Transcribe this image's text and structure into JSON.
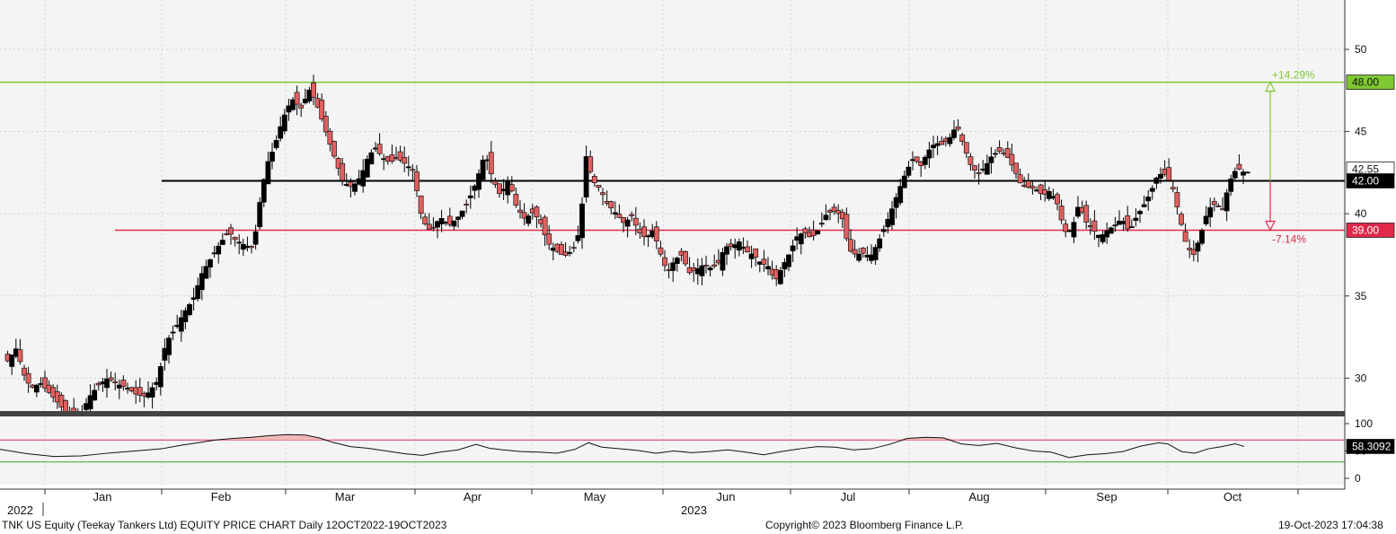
{
  "footer": {
    "left": "TNK US Equity (Teekay Tankers Ltd) EQUITY PRICE CHART  Daily 12OCT2022-19OCT2023",
    "center": "Copyright© 2023 Bloomberg Finance L.P.",
    "right": "19-Oct-2023 17:04:38"
  },
  "colors": {
    "up": "#000000",
    "down": "#e06060",
    "resistance": "#7ec832",
    "support": "#e0294a",
    "mid": "#000000",
    "rsi_upper": "#e0294a",
    "rsi_lower": "#2faa2f"
  },
  "chart_data": {
    "type": "candlestick",
    "ylim": [
      28.0,
      53.0
    ],
    "yticks": [
      30,
      35,
      40,
      45,
      50
    ],
    "x_month_labels": [
      "Jan",
      "Feb",
      "Mar",
      "Apr",
      "May",
      "Jun",
      "Jul",
      "Aug",
      "Sep",
      "Oct"
    ],
    "x_year_labels": [
      "2022",
      "2023"
    ],
    "levels": [
      {
        "value": 48.0,
        "label": "48.00",
        "kind": "resistance"
      },
      {
        "value": 42.0,
        "label": "42.00",
        "kind": "mid"
      },
      {
        "value": 39.0,
        "label": "39.00",
        "kind": "support"
      }
    ],
    "annotations": {
      "up_pct": "+14.29%",
      "down_pct": "-7.14%",
      "last_price_tag": "42.55"
    },
    "price_path": [
      [
        0,
        32.8
      ],
      [
        8,
        31.0
      ],
      [
        18,
        31.8
      ],
      [
        28,
        30.0
      ],
      [
        35,
        29.4
      ],
      [
        45,
        29.7
      ],
      [
        60,
        28.8
      ],
      [
        75,
        27.8
      ],
      [
        90,
        27.8
      ],
      [
        100,
        28.9
      ],
      [
        110,
        29.6
      ],
      [
        120,
        30.0
      ],
      [
        132,
        29.6
      ],
      [
        142,
        29.4
      ],
      [
        152,
        29.0
      ],
      [
        162,
        28.9
      ],
      [
        175,
        29.8
      ],
      [
        185,
        32.2
      ],
      [
        195,
        33.0
      ],
      [
        205,
        34.0
      ],
      [
        215,
        34.8
      ],
      [
        225,
        36.4
      ],
      [
        235,
        37.3
      ],
      [
        245,
        38.2
      ],
      [
        255,
        38.9
      ],
      [
        262,
        38.4
      ],
      [
        272,
        38.1
      ],
      [
        282,
        37.9
      ],
      [
        290,
        41.0
      ],
      [
        297,
        43.0
      ],
      [
        305,
        44.0
      ],
      [
        315,
        45.8
      ],
      [
        325,
        47.0
      ],
      [
        335,
        46.4
      ],
      [
        345,
        47.6
      ],
      [
        355,
        46.3
      ],
      [
        365,
        44.6
      ],
      [
        372,
        43.5
      ],
      [
        382,
        41.9
      ],
      [
        392,
        41.6
      ],
      [
        402,
        42.3
      ],
      [
        410,
        43.5
      ],
      [
        418,
        44.0
      ],
      [
        426,
        43.4
      ],
      [
        434,
        43.1
      ],
      [
        442,
        43.4
      ],
      [
        452,
        43.0
      ],
      [
        460,
        42.6
      ],
      [
        470,
        39.6
      ],
      [
        480,
        38.9
      ],
      [
        490,
        39.8
      ],
      [
        500,
        39.3
      ],
      [
        510,
        39.8
      ],
      [
        520,
        40.6
      ],
      [
        530,
        41.9
      ],
      [
        540,
        43.7
      ],
      [
        548,
        42.2
      ],
      [
        557,
        41.1
      ],
      [
        566,
        42.1
      ],
      [
        575,
        40.4
      ],
      [
        584,
        39.7
      ],
      [
        594,
        40.1
      ],
      [
        602,
        39.4
      ],
      [
        610,
        38.2
      ],
      [
        618,
        37.8
      ],
      [
        628,
        37.4
      ],
      [
        638,
        37.8
      ],
      [
        646,
        39.1
      ],
      [
        652,
        43.6
      ],
      [
        660,
        42.0
      ],
      [
        668,
        41.5
      ],
      [
        676,
        40.6
      ],
      [
        686,
        40.0
      ],
      [
        695,
        39.4
      ],
      [
        703,
        39.9
      ],
      [
        711,
        38.9
      ],
      [
        719,
        38.5
      ],
      [
        727,
        39.0
      ],
      [
        735,
        37.6
      ],
      [
        743,
        36.4
      ],
      [
        751,
        37.2
      ],
      [
        759,
        37.5
      ],
      [
        767,
        36.4
      ],
      [
        775,
        36.6
      ],
      [
        783,
        36.9
      ],
      [
        791,
        36.7
      ],
      [
        799,
        36.9
      ],
      [
        807,
        38.0
      ],
      [
        815,
        38.0
      ],
      [
        823,
        38.3
      ],
      [
        831,
        37.7
      ],
      [
        839,
        37.5
      ],
      [
        847,
        37.0
      ],
      [
        855,
        36.8
      ],
      [
        863,
        35.9
      ],
      [
        871,
        36.8
      ],
      [
        879,
        37.6
      ],
      [
        887,
        38.6
      ],
      [
        895,
        38.9
      ],
      [
        903,
        38.5
      ],
      [
        911,
        39.0
      ],
      [
        919,
        39.9
      ],
      [
        927,
        40.2
      ],
      [
        937,
        39.9
      ],
      [
        945,
        37.8
      ],
      [
        953,
        37.5
      ],
      [
        961,
        37.6
      ],
      [
        969,
        37.4
      ],
      [
        977,
        38.2
      ],
      [
        985,
        39.2
      ],
      [
        993,
        40.3
      ],
      [
        1001,
        41.5
      ],
      [
        1009,
        42.6
      ],
      [
        1017,
        43.4
      ],
      [
        1025,
        42.9
      ],
      [
        1033,
        43.8
      ],
      [
        1041,
        44.3
      ],
      [
        1049,
        44.2
      ],
      [
        1057,
        44.6
      ],
      [
        1065,
        45.4
      ],
      [
        1073,
        44.1
      ],
      [
        1081,
        42.9
      ],
      [
        1089,
        42.4
      ],
      [
        1097,
        42.9
      ],
      [
        1105,
        43.6
      ],
      [
        1113,
        43.8
      ],
      [
        1121,
        43.5
      ],
      [
        1129,
        42.7
      ],
      [
        1137,
        41.7
      ],
      [
        1145,
        41.6
      ],
      [
        1153,
        41.5
      ],
      [
        1161,
        41.1
      ],
      [
        1169,
        41.4
      ],
      [
        1177,
        40.6
      ],
      [
        1185,
        38.9
      ],
      [
        1193,
        39.0
      ],
      [
        1201,
        40.6
      ],
      [
        1209,
        39.5
      ],
      [
        1217,
        39.0
      ],
      [
        1225,
        38.6
      ],
      [
        1233,
        39.0
      ],
      [
        1241,
        39.3
      ],
      [
        1249,
        39.7
      ],
      [
        1257,
        38.9
      ],
      [
        1265,
        39.8
      ],
      [
        1273,
        40.5
      ],
      [
        1281,
        41.3
      ],
      [
        1289,
        42.4
      ],
      [
        1297,
        42.4
      ],
      [
        1305,
        41.7
      ],
      [
        1313,
        39.8
      ],
      [
        1321,
        38.0
      ],
      [
        1329,
        37.5
      ],
      [
        1337,
        38.8
      ],
      [
        1345,
        40.3
      ],
      [
        1353,
        40.6
      ],
      [
        1361,
        40.3
      ],
      [
        1369,
        42.0
      ],
      [
        1377,
        42.8
      ],
      [
        1385,
        42.5
      ],
      [
        1390,
        42.55
      ]
    ],
    "rsi": {
      "ylim": [
        0,
        100
      ],
      "yticks": [
        0,
        50,
        100
      ],
      "upper": 70,
      "lower": 30,
      "last_value": "58.3092",
      "path": [
        [
          0,
          53
        ],
        [
          30,
          45
        ],
        [
          60,
          40
        ],
        [
          90,
          41
        ],
        [
          120,
          46
        ],
        [
          150,
          50
        ],
        [
          180,
          54
        ],
        [
          200,
          60
        ],
        [
          220,
          65
        ],
        [
          240,
          70
        ],
        [
          260,
          73
        ],
        [
          280,
          75
        ],
        [
          300,
          78
        ],
        [
          320,
          80
        ],
        [
          340,
          79
        ],
        [
          355,
          74
        ],
        [
          370,
          66
        ],
        [
          390,
          58
        ],
        [
          410,
          55
        ],
        [
          430,
          50
        ],
        [
          450,
          45
        ],
        [
          470,
          42
        ],
        [
          490,
          48
        ],
        [
          510,
          52
        ],
        [
          530,
          62
        ],
        [
          545,
          55
        ],
        [
          560,
          52
        ],
        [
          580,
          49
        ],
        [
          600,
          48
        ],
        [
          620,
          46
        ],
        [
          640,
          53
        ],
        [
          655,
          65
        ],
        [
          670,
          57
        ],
        [
          690,
          54
        ],
        [
          710,
          51
        ],
        [
          730,
          46
        ],
        [
          750,
          50
        ],
        [
          770,
          47
        ],
        [
          790,
          49
        ],
        [
          810,
          52
        ],
        [
          830,
          48
        ],
        [
          850,
          43
        ],
        [
          870,
          49
        ],
        [
          890,
          54
        ],
        [
          910,
          58
        ],
        [
          930,
          57
        ],
        [
          950,
          52
        ],
        [
          970,
          54
        ],
        [
          990,
          62
        ],
        [
          1010,
          73
        ],
        [
          1030,
          75
        ],
        [
          1050,
          74
        ],
        [
          1070,
          63
        ],
        [
          1090,
          60
        ],
        [
          1110,
          64
        ],
        [
          1130,
          56
        ],
        [
          1150,
          50
        ],
        [
          1170,
          48
        ],
        [
          1190,
          38
        ],
        [
          1210,
          43
        ],
        [
          1230,
          45
        ],
        [
          1250,
          49
        ],
        [
          1270,
          59
        ],
        [
          1290,
          65
        ],
        [
          1300,
          63
        ],
        [
          1315,
          49
        ],
        [
          1330,
          46
        ],
        [
          1345,
          54
        ],
        [
          1360,
          58
        ],
        [
          1375,
          63
        ],
        [
          1385,
          58.3
        ]
      ]
    }
  }
}
